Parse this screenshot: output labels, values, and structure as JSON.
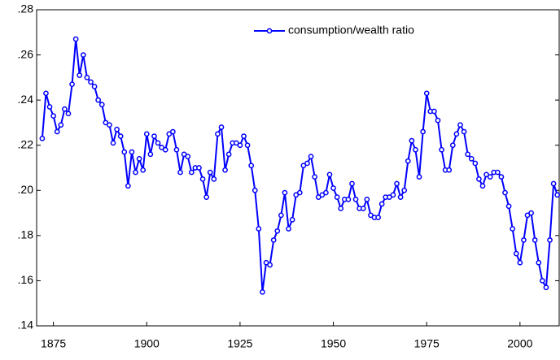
{
  "chart_data": {
    "type": "line",
    "x": [
      1872,
      1873,
      1874,
      1875,
      1876,
      1877,
      1878,
      1879,
      1880,
      1881,
      1882,
      1883,
      1884,
      1885,
      1886,
      1887,
      1888,
      1889,
      1890,
      1891,
      1892,
      1893,
      1894,
      1895,
      1896,
      1897,
      1898,
      1899,
      1900,
      1901,
      1902,
      1903,
      1904,
      1905,
      1906,
      1907,
      1908,
      1909,
      1910,
      1911,
      1912,
      1913,
      1914,
      1915,
      1916,
      1917,
      1918,
      1919,
      1920,
      1921,
      1922,
      1923,
      1924,
      1925,
      1926,
      1927,
      1928,
      1929,
      1930,
      1931,
      1932,
      1933,
      1934,
      1935,
      1936,
      1937,
      1938,
      1939,
      1940,
      1941,
      1942,
      1943,
      1944,
      1945,
      1946,
      1947,
      1948,
      1949,
      1950,
      1951,
      1952,
      1953,
      1954,
      1955,
      1956,
      1957,
      1958,
      1959,
      1960,
      1961,
      1962,
      1963,
      1964,
      1965,
      1966,
      1967,
      1968,
      1969,
      1970,
      1971,
      1972,
      1973,
      1974,
      1975,
      1976,
      1977,
      1978,
      1979,
      1980,
      1981,
      1982,
      1983,
      1984,
      1985,
      1986,
      1987,
      1988,
      1989,
      1990,
      1991,
      1992,
      1993,
      1994,
      1995,
      1996,
      1997,
      1998,
      1999,
      2000,
      2001,
      2002,
      2003,
      2004,
      2005,
      2006,
      2007,
      2008,
      2009,
      2010
    ],
    "series": [
      {
        "name": "consumption/wealth ratio",
        "color": "#0000ff",
        "values": [
          0.223,
          0.243,
          0.237,
          0.233,
          0.226,
          0.229,
          0.236,
          0.234,
          0.247,
          0.267,
          0.251,
          0.26,
          0.25,
          0.248,
          0.246,
          0.24,
          0.238,
          0.23,
          0.229,
          0.221,
          0.227,
          0.224,
          0.217,
          0.202,
          0.217,
          0.208,
          0.214,
          0.209,
          0.225,
          0.216,
          0.224,
          0.221,
          0.219,
          0.218,
          0.225,
          0.226,
          0.218,
          0.208,
          0.216,
          0.215,
          0.208,
          0.21,
          0.21,
          0.205,
          0.197,
          0.208,
          0.205,
          0.225,
          0.228,
          0.209,
          0.216,
          0.221,
          0.221,
          0.22,
          0.224,
          0.22,
          0.211,
          0.2,
          0.183,
          0.155,
          0.168,
          0.167,
          0.178,
          0.182,
          0.189,
          0.199,
          0.183,
          0.187,
          0.198,
          0.199,
          0.211,
          0.212,
          0.215,
          0.206,
          0.197,
          0.198,
          0.199,
          0.207,
          0.201,
          0.197,
          0.192,
          0.196,
          0.196,
          0.203,
          0.196,
          0.192,
          0.192,
          0.196,
          0.189,
          0.188,
          0.188,
          0.194,
          0.197,
          0.197,
          0.198,
          0.203,
          0.197,
          0.2,
          0.213,
          0.222,
          0.218,
          0.206,
          0.226,
          0.243,
          0.235,
          0.235,
          0.231,
          0.218,
          0.209,
          0.209,
          0.22,
          0.225,
          0.229,
          0.226,
          0.216,
          0.214,
          0.212,
          0.205,
          0.202,
          0.207,
          0.206,
          0.208,
          0.208,
          0.206,
          0.199,
          0.193,
          0.183,
          0.172,
          0.168,
          0.178,
          0.189,
          0.19,
          0.178,
          0.168,
          0.16,
          0.157,
          0.178,
          0.203,
          0.198
        ]
      }
    ],
    "xlim": [
      1870.5,
      2010.5
    ],
    "xticks": [
      1875,
      1900,
      1925,
      1950,
      1975,
      2000
    ],
    "ylim": [
      0.14,
      0.28
    ],
    "yticks": [
      {
        "value": 0.14,
        "label": ".14"
      },
      {
        "value": 0.16,
        "label": ".16"
      },
      {
        "value": 0.18,
        "label": ".18"
      },
      {
        "value": 0.2,
        "label": ".20"
      },
      {
        "value": 0.22,
        "label": ".22"
      },
      {
        "value": 0.24,
        "label": ".24"
      },
      {
        "value": 0.26,
        "label": ".26"
      },
      {
        "value": 0.28,
        "label": ".28"
      }
    ],
    "grid": false,
    "legend": "top"
  }
}
